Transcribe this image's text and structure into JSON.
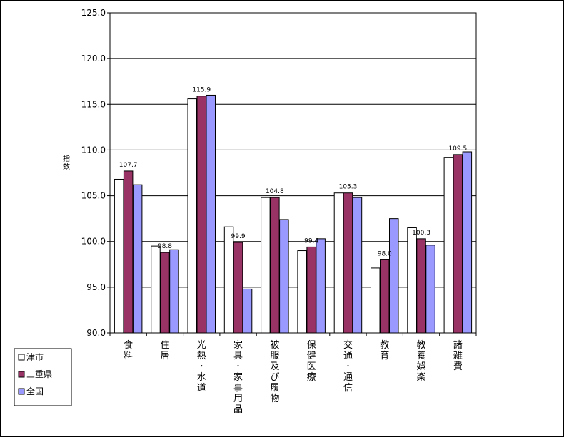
{
  "chart_data": {
    "type": "bar",
    "ylabel": "指数",
    "ylim": [
      90.0,
      125.0
    ],
    "yticks": [
      "90.0",
      "95.0",
      "100.0",
      "105.0",
      "110.0",
      "115.0",
      "120.0",
      "125.0"
    ],
    "grid": true,
    "legend_position": "bottom-left",
    "categories": [
      "食料",
      "住居",
      "光熱・水道",
      "家具・家事用品",
      "被服及び履物",
      "保健医療",
      "交通・通信",
      "教育",
      "教養娯楽",
      "諸雑費"
    ],
    "series": [
      {
        "name": "津市",
        "color": "#ffffff",
        "values": [
          106.8,
          99.5,
          115.6,
          101.6,
          104.8,
          99.0,
          105.3,
          97.1,
          101.5,
          109.2
        ]
      },
      {
        "name": "三重県",
        "color": "#993366",
        "values": [
          107.7,
          98.8,
          115.9,
          99.9,
          104.8,
          99.4,
          105.3,
          98.0,
          100.3,
          109.5
        ]
      },
      {
        "name": "全国",
        "color": "#9999ff",
        "values": [
          106.2,
          99.1,
          116.0,
          94.8,
          102.4,
          100.3,
          104.8,
          102.5,
          99.6,
          109.8
        ]
      }
    ],
    "data_labels": [
      "107.7",
      "98.8",
      "115.9",
      "99.9",
      "104.8",
      "99.4",
      "105.3",
      "98.0",
      "100.3",
      "109.5"
    ]
  }
}
